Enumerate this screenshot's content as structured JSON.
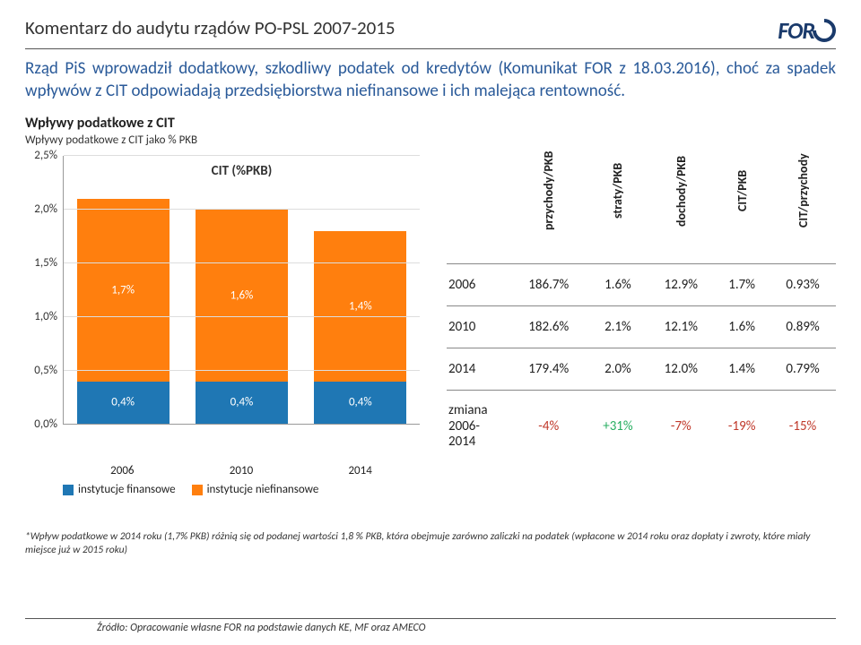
{
  "header": {
    "title": "Komentarz do audytu rządów PO-PSL 2007-2015",
    "logo_text": "FOR"
  },
  "intro": "Rząd PiS wprowadził dodatkowy, szkodliwy podatek od kredytów (Komunikat FOR z 18.03.2016), choć za spadek wpływów z CIT odpowiadają przedsiębiorstwa niefinansowe i ich malejąca rentowność.",
  "chart": {
    "title": "Wpływy podatkowe z CIT",
    "subtitle": "Wpływy podatkowe z CIT jako % PKB",
    "series_label": "CIT (%PKB)",
    "y_ticks": [
      "0,0%",
      "0,5%",
      "1,0%",
      "1,5%",
      "2,0%",
      "2,5%"
    ],
    "y_max": 2.5,
    "categories": [
      "2006",
      "2010",
      "2014"
    ],
    "stack_colors": {
      "fin": "#1f77b4",
      "nonfin": "#ff7f0e"
    },
    "stacks": [
      {
        "fin": 0.4,
        "nonfin": 1.7
      },
      {
        "fin": 0.4,
        "nonfin": 1.6
      },
      {
        "fin": 0.4,
        "nonfin": 1.4
      }
    ],
    "stack_labels": [
      {
        "fin": "0,4%",
        "nonfin": "1,7%"
      },
      {
        "fin": "0,4%",
        "nonfin": "1,6%"
      },
      {
        "fin": "0,4%",
        "nonfin": "1,4%"
      }
    ],
    "legend": {
      "fin": "instytucje finansowe",
      "nonfin": "instytucje niefinansowe"
    }
  },
  "table": {
    "columns": [
      "",
      "przychody/PKB",
      "straty/PKB",
      "dochody/PKB",
      "CIT/PKB",
      "CIT/przychody"
    ],
    "rows": [
      {
        "year": "2006",
        "values": [
          "186.7%",
          "1.6%",
          "12.9%",
          "1.7%",
          "0.93%"
        ]
      },
      {
        "year": "2010",
        "values": [
          "182.6%",
          "2.1%",
          "12.1%",
          "1.6%",
          "0.89%"
        ]
      },
      {
        "year": "2014",
        "values": [
          "179.4%",
          "2.0%",
          "12.0%",
          "1.4%",
          "0.79%"
        ]
      }
    ],
    "change": {
      "label": "zmiana 2006-2014",
      "values": [
        {
          "v": "-4%",
          "cls": "neg"
        },
        {
          "v": "+31%",
          "cls": "pos"
        },
        {
          "v": "-7%",
          "cls": "neg"
        },
        {
          "v": "-19%",
          "cls": "neg"
        },
        {
          "v": "-15%",
          "cls": "neg"
        }
      ]
    }
  },
  "footnote": "*Wpływ podatkowe w 2014 roku (1,7% PKB) różnią się od podanej wartości 1,8 % PKB, która obejmuje zarówno zaliczki na podatek (wpłacone w 2014 roku oraz dopłaty i zwroty, które miały miejsce już w 2015 roku)",
  "source": "Źródło: Opracowanie własne FOR na podstawie danych KE, MF oraz AMECO"
}
